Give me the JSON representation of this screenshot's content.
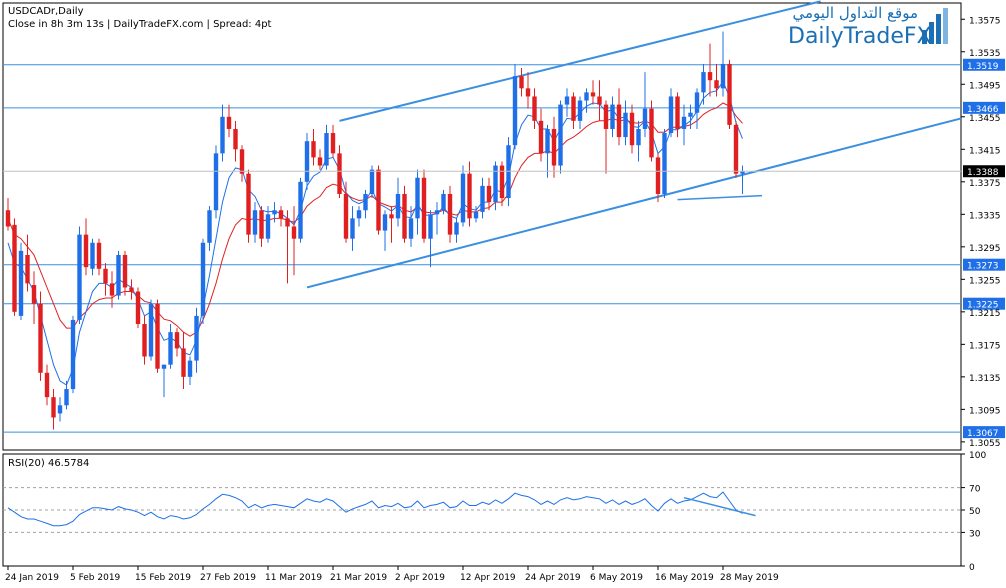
{
  "header": {
    "symbol": "USDCADr,Daily",
    "info": "Close in 8h 3m 13s  |  DailyTradeFX.com  |  Spread: 4pt"
  },
  "logo": {
    "arabic": "موقع التداول اليومي",
    "english": "DailyTradeFX"
  },
  "colors": {
    "up": "#1f6fe8",
    "down": "#e02020",
    "ma_fast": "#1f6fe8",
    "ma_slow": "#e02020",
    "level": "#3a8fe0",
    "channel": "#3a8fe0",
    "axis": "#808080",
    "label_bg": "#1f6fe8",
    "current_bg": "#000000"
  },
  "chart_data": [
    {
      "type": "candlestick",
      "title": "USDCADr,Daily",
      "x_ticks": [
        "24 Jan 2019",
        "5 Feb 2019",
        "15 Feb 2019",
        "27 Feb 2019",
        "11 Mar 2019",
        "21 Mar 2019",
        "2 Apr 2019",
        "12 Apr 2019",
        "24 Apr 2019",
        "6 May 2019",
        "16 May 2019",
        "28 May 2019"
      ],
      "x_tick_index": [
        0,
        10,
        20,
        30,
        40,
        50,
        60,
        70,
        80,
        90,
        100,
        110
      ],
      "y_ticks": [
        1.3575,
        1.3535,
        1.3495,
        1.3455,
        1.3415,
        1.3375,
        1.3335,
        1.3295,
        1.3255,
        1.3215,
        1.3175,
        1.3135,
        1.3095,
        1.3055
      ],
      "ylim": [
        1.3045,
        1.3595
      ],
      "levels": [
        "1.3519",
        "1.3466",
        "1.3273",
        "1.3225",
        "1.3067"
      ],
      "current_price": "1.3388",
      "grid": false,
      "ohlc": [
        [
          1.334,
          1.3355,
          1.3315,
          1.332
        ],
        [
          1.3322,
          1.333,
          1.321,
          1.3215
        ],
        [
          1.321,
          1.33,
          1.3205,
          1.329
        ],
        [
          1.3285,
          1.331,
          1.324,
          1.325
        ],
        [
          1.3248,
          1.3265,
          1.32,
          1.3225
        ],
        [
          1.3225,
          1.324,
          1.313,
          1.314
        ],
        [
          1.314,
          1.315,
          1.31,
          1.311
        ],
        [
          1.311,
          1.312,
          1.307,
          1.3085
        ],
        [
          1.309,
          1.311,
          1.308,
          1.31
        ],
        [
          1.31,
          1.313,
          1.3095,
          1.312
        ],
        [
          1.312,
          1.321,
          1.3115,
          1.3205
        ],
        [
          1.3205,
          1.332,
          1.32,
          1.331
        ],
        [
          1.331,
          1.333,
          1.326,
          1.327
        ],
        [
          1.3268,
          1.3305,
          1.326,
          1.33
        ],
        [
          1.33,
          1.3305,
          1.326,
          1.3268
        ],
        [
          1.3268,
          1.3275,
          1.3235,
          1.325
        ],
        [
          1.325,
          1.3265,
          1.322,
          1.3235
        ],
        [
          1.3235,
          1.329,
          1.323,
          1.3285
        ],
        [
          1.3285,
          1.329,
          1.3235,
          1.3245
        ],
        [
          1.3245,
          1.3255,
          1.323,
          1.324
        ],
        [
          1.324,
          1.3245,
          1.3195,
          1.32
        ],
        [
          1.32,
          1.321,
          1.315,
          1.316
        ],
        [
          1.316,
          1.323,
          1.3155,
          1.3225
        ],
        [
          1.3225,
          1.323,
          1.314,
          1.3145
        ],
        [
          1.3145,
          1.315,
          1.311,
          1.315
        ],
        [
          1.315,
          1.32,
          1.3145,
          1.319
        ],
        [
          1.319,
          1.3195,
          1.316,
          1.317
        ],
        [
          1.317,
          1.319,
          1.312,
          1.3135
        ],
        [
          1.3135,
          1.316,
          1.3125,
          1.3155
        ],
        [
          1.3155,
          1.322,
          1.314,
          1.321
        ],
        [
          1.321,
          1.3305,
          1.32,
          1.33
        ],
        [
          1.33,
          1.3345,
          1.329,
          1.334
        ],
        [
          1.334,
          1.342,
          1.333,
          1.341
        ],
        [
          1.341,
          1.347,
          1.34,
          1.3455
        ],
        [
          1.3455,
          1.347,
          1.343,
          1.344
        ],
        [
          1.344,
          1.345,
          1.34,
          1.3415
        ],
        [
          1.3415,
          1.342,
          1.3375,
          1.3385
        ],
        [
          1.3385,
          1.339,
          1.33,
          1.331
        ],
        [
          1.331,
          1.335,
          1.33,
          1.334
        ],
        [
          1.334,
          1.3345,
          1.3295,
          1.3305
        ],
        [
          1.3305,
          1.3345,
          1.33,
          1.3335
        ],
        [
          1.3335,
          1.335,
          1.3325,
          1.334
        ],
        [
          1.334,
          1.3345,
          1.332,
          1.333
        ],
        [
          1.333,
          1.334,
          1.325,
          1.332
        ],
        [
          1.332,
          1.3345,
          1.326,
          1.3305
        ],
        [
          1.3305,
          1.338,
          1.33,
          1.3375
        ],
        [
          1.3375,
          1.3435,
          1.3365,
          1.3425
        ],
        [
          1.3425,
          1.344,
          1.3395,
          1.3405
        ],
        [
          1.3405,
          1.3415,
          1.339,
          1.3395
        ],
        [
          1.3395,
          1.3445,
          1.339,
          1.3435
        ],
        [
          1.3435,
          1.3445,
          1.3405,
          1.341
        ],
        [
          1.341,
          1.342,
          1.3355,
          1.336
        ],
        [
          1.336,
          1.3375,
          1.33,
          1.3305
        ],
        [
          1.3305,
          1.3345,
          1.329,
          1.333
        ],
        [
          1.333,
          1.3345,
          1.332,
          1.334
        ],
        [
          1.334,
          1.3365,
          1.333,
          1.336
        ],
        [
          1.336,
          1.3395,
          1.3355,
          1.339
        ],
        [
          1.339,
          1.3395,
          1.331,
          1.3315
        ],
        [
          1.3315,
          1.334,
          1.329,
          1.3335
        ],
        [
          1.3335,
          1.3345,
          1.33,
          1.333
        ],
        [
          1.333,
          1.338,
          1.332,
          1.336
        ],
        [
          1.336,
          1.337,
          1.33,
          1.3305
        ],
        [
          1.3305,
          1.3345,
          1.3295,
          1.333
        ],
        [
          1.333,
          1.339,
          1.331,
          1.338
        ],
        [
          1.338,
          1.339,
          1.33,
          1.3305
        ],
        [
          1.3305,
          1.334,
          1.327,
          1.3335
        ],
        [
          1.3335,
          1.335,
          1.331,
          1.334
        ],
        [
          1.334,
          1.3365,
          1.3335,
          1.336
        ],
        [
          1.336,
          1.337,
          1.33,
          1.331
        ],
        [
          1.331,
          1.333,
          1.33,
          1.3325
        ],
        [
          1.3325,
          1.3395,
          1.332,
          1.3385
        ],
        [
          1.3385,
          1.34,
          1.332,
          1.333
        ],
        [
          1.333,
          1.3345,
          1.3325,
          1.3338
        ],
        [
          1.3338,
          1.338,
          1.333,
          1.337
        ],
        [
          1.337,
          1.338,
          1.334,
          1.335
        ],
        [
          1.335,
          1.34,
          1.334,
          1.3395
        ],
        [
          1.3395,
          1.34,
          1.3345,
          1.3355
        ],
        [
          1.3355,
          1.343,
          1.3345,
          1.342
        ],
        [
          1.342,
          1.352,
          1.3415,
          1.3505
        ],
        [
          1.3505,
          1.3515,
          1.348,
          1.349
        ],
        [
          1.349,
          1.351,
          1.3465,
          1.348
        ],
        [
          1.348,
          1.349,
          1.344,
          1.345
        ],
        [
          1.345,
          1.3465,
          1.34,
          1.341
        ],
        [
          1.341,
          1.3445,
          1.338,
          1.344
        ],
        [
          1.344,
          1.3455,
          1.338,
          1.3395
        ],
        [
          1.3395,
          1.3475,
          1.3385,
          1.347
        ],
        [
          1.347,
          1.349,
          1.3455,
          1.348
        ],
        [
          1.348,
          1.3485,
          1.344,
          1.345
        ],
        [
          1.345,
          1.348,
          1.344,
          1.3475
        ],
        [
          1.3475,
          1.349,
          1.346,
          1.3485
        ],
        [
          1.3485,
          1.35,
          1.347,
          1.348
        ],
        [
          1.348,
          1.35,
          1.345,
          1.347
        ],
        [
          1.347,
          1.3475,
          1.3385,
          1.344
        ],
        [
          1.344,
          1.348,
          1.343,
          1.347
        ],
        [
          1.347,
          1.349,
          1.342,
          1.343
        ],
        [
          1.343,
          1.3475,
          1.342,
          1.346
        ],
        [
          1.346,
          1.347,
          1.341,
          1.342
        ],
        [
          1.342,
          1.345,
          1.34,
          1.344
        ],
        [
          1.344,
          1.351,
          1.343,
          1.3465
        ],
        [
          1.3465,
          1.3475,
          1.34,
          1.3405
        ],
        [
          1.3405,
          1.341,
          1.335,
          1.336
        ],
        [
          1.336,
          1.344,
          1.3355,
          1.3435
        ],
        [
          1.3435,
          1.349,
          1.343,
          1.348
        ],
        [
          1.348,
          1.3485,
          1.343,
          1.344
        ],
        [
          1.344,
          1.347,
          1.342,
          1.3455
        ],
        [
          1.3455,
          1.347,
          1.344,
          1.346
        ],
        [
          1.346,
          1.349,
          1.344,
          1.3485
        ],
        [
          1.3485,
          1.352,
          1.347,
          1.351
        ],
        [
          1.351,
          1.3545,
          1.348,
          1.35
        ],
        [
          1.35,
          1.352,
          1.348,
          1.349
        ],
        [
          1.349,
          1.356,
          1.348,
          1.352
        ],
        [
          1.352,
          1.3525,
          1.344,
          1.3445
        ],
        [
          1.3445,
          1.345,
          1.338,
          1.3385
        ],
        [
          1.3385,
          1.3395,
          1.336,
          1.3388
        ]
      ],
      "ma_fast": [
        1.33,
        1.3275,
        1.327,
        1.3255,
        1.324,
        1.321,
        1.318,
        1.315,
        1.313,
        1.3125,
        1.3145,
        1.319,
        1.3215,
        1.324,
        1.325,
        1.325,
        1.3245,
        1.3255,
        1.325,
        1.3245,
        1.323,
        1.321,
        1.3215,
        1.3195,
        1.318,
        1.3183,
        1.3178,
        1.3165,
        1.3162,
        1.318,
        1.322,
        1.326,
        1.3305,
        1.335,
        1.338,
        1.3392,
        1.339,
        1.3365,
        1.3357,
        1.334,
        1.3338,
        1.3339,
        1.3336,
        1.333,
        1.3322,
        1.334,
        1.337,
        1.3382,
        1.3387,
        1.3403,
        1.3405,
        1.339,
        1.3362,
        1.3352,
        1.3348,
        1.3352,
        1.3365,
        1.3348,
        1.3344,
        1.3339,
        1.3346,
        1.3332,
        1.3331,
        1.3348,
        1.3334,
        1.3334,
        1.3336,
        1.3344,
        1.3333,
        1.333,
        1.3348,
        1.3342,
        1.334,
        1.335,
        1.335,
        1.3365,
        1.3362,
        1.3381,
        1.3422,
        1.3445,
        1.3457,
        1.3455,
        1.344,
        1.344,
        1.3425,
        1.344,
        1.3453,
        1.3452,
        1.346,
        1.3468,
        1.3472,
        1.3471,
        1.3461,
        1.3464,
        1.3453,
        1.3455,
        1.3443,
        1.3442,
        1.345,
        1.3435,
        1.341,
        1.3418,
        1.3439,
        1.3439,
        1.3444,
        1.345,
        1.3462,
        1.3478,
        1.3485,
        1.3487,
        1.3498,
        1.348,
        1.3448,
        1.3428
      ],
      "ma_slow": [
        1.333,
        1.331,
        1.3305,
        1.3295,
        1.3285,
        1.3265,
        1.3245,
        1.3225,
        1.3205,
        1.3195,
        1.3195,
        1.3208,
        1.3215,
        1.3225,
        1.323,
        1.3232,
        1.3232,
        1.3238,
        1.324,
        1.324,
        1.3235,
        1.3228,
        1.3226,
        1.3215,
        1.3206,
        1.3204,
        1.3198,
        1.319,
        1.3185,
        1.319,
        1.3205,
        1.3225,
        1.325,
        1.328,
        1.3305,
        1.3322,
        1.333,
        1.3328,
        1.333,
        1.3327,
        1.3328,
        1.333,
        1.333,
        1.3328,
        1.3325,
        1.3332,
        1.3345,
        1.3352,
        1.3357,
        1.3368,
        1.3372,
        1.337,
        1.336,
        1.3355,
        1.3352,
        1.3353,
        1.3358,
        1.335,
        1.3347,
        1.3344,
        1.3346,
        1.334,
        1.3338,
        1.3344,
        1.3338,
        1.3337,
        1.3337,
        1.334,
        1.3336,
        1.3334,
        1.334,
        1.3338,
        1.3338,
        1.3342,
        1.3343,
        1.335,
        1.335,
        1.336,
        1.338,
        1.3395,
        1.3405,
        1.341,
        1.341,
        1.3413,
        1.341,
        1.3418,
        1.3426,
        1.343,
        1.3436,
        1.3443,
        1.3448,
        1.345,
        1.345,
        1.3453,
        1.345,
        1.3451,
        1.3448,
        1.3447,
        1.345,
        1.3446,
        1.3436,
        1.3436,
        1.3442,
        1.3442,
        1.3443,
        1.3445,
        1.345,
        1.3458,
        1.3463,
        1.3466,
        1.3472,
        1.3468,
        1.3456,
        1.3447
      ]
    },
    {
      "type": "line",
      "title": "RSI(20) 46.5784",
      "y_ticks": [
        100,
        70,
        50,
        30,
        0
      ],
      "ylim": [
        0,
        100
      ],
      "levels": [
        70,
        50,
        30
      ],
      "values": [
        52,
        48,
        44,
        42,
        42,
        40,
        38,
        36,
        36,
        37,
        40,
        46,
        49,
        52,
        52,
        51,
        50,
        53,
        51,
        50,
        48,
        45,
        48,
        44,
        42,
        45,
        44,
        42,
        43,
        46,
        51,
        55,
        60,
        64,
        63,
        61,
        58,
        52,
        55,
        52,
        54,
        55,
        54,
        53,
        52,
        56,
        60,
        58,
        57,
        60,
        58,
        53,
        48,
        51,
        53,
        55,
        58,
        52,
        54,
        53,
        56,
        52,
        53,
        58,
        52,
        54,
        55,
        57,
        52,
        53,
        58,
        54,
        54,
        57,
        55,
        59,
        56,
        60,
        65,
        63,
        62,
        59,
        55,
        58,
        55,
        59,
        61,
        59,
        60,
        62,
        61,
        60,
        56,
        59,
        55,
        58,
        55,
        57,
        60,
        54,
        49,
        56,
        60,
        56,
        58,
        59,
        62,
        65,
        62,
        61,
        66,
        58,
        50,
        47
      ]
    }
  ]
}
